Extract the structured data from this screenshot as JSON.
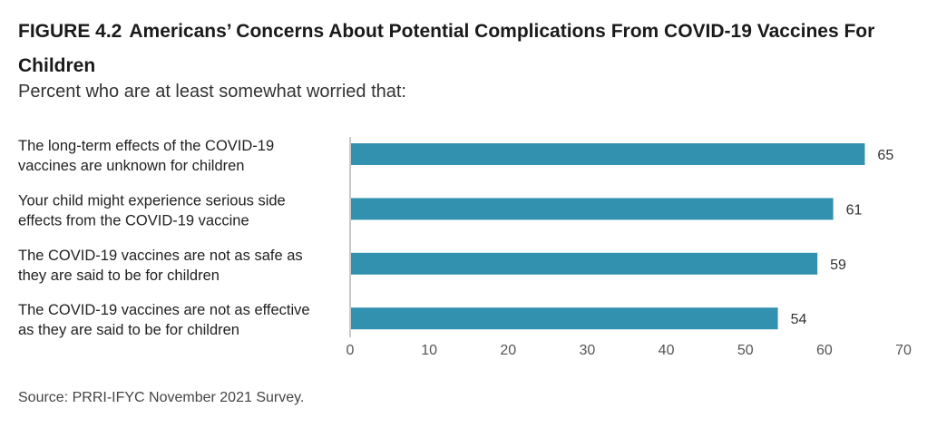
{
  "header": {
    "figure_label": "FIGURE 4.2",
    "title": "Americans’ Concerns About Potential Complications From COVID-19 Vaccines For Children",
    "subtitle": "Percent who are at least somewhat worried that:"
  },
  "footer": {
    "source": "Source: PRRI-IFYC November 2021 Survey."
  },
  "colors": {
    "bar": "#3391b0",
    "axis": "#c9c9c9"
  },
  "chart_data": {
    "type": "bar",
    "orientation": "horizontal",
    "categories": [
      [
        "The long-term effects of the COVID-19",
        "vaccines are unknown for children"
      ],
      [
        "Your child might experience serious side",
        "effects from the COVID-19 vaccine"
      ],
      [
        "The COVID-19 vaccines are not as safe as",
        "they are said to be for children"
      ],
      [
        "The COVID-19 vaccines are not as effective",
        "as they are said to be for children"
      ]
    ],
    "values": [
      65,
      61,
      59,
      54
    ],
    "xlim": [
      0,
      70
    ],
    "ticks": [
      0,
      10,
      20,
      30,
      40,
      50,
      60,
      70
    ],
    "grid": false,
    "legend": "none"
  }
}
